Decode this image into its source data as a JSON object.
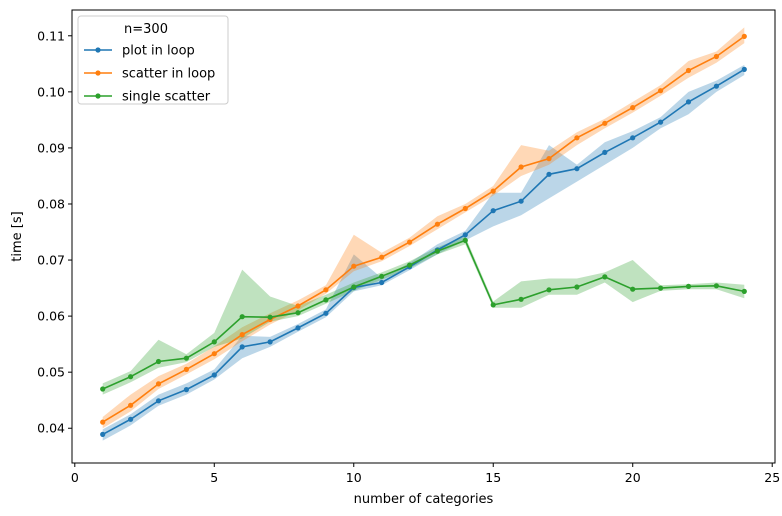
{
  "chart_data": {
    "type": "line",
    "xlabel": "number of categories",
    "ylabel": "time [s]",
    "xlim": [
      -0.1,
      25.1
    ],
    "ylim": [
      0.0338,
      0.1146
    ],
    "xticks": [
      0,
      5,
      10,
      15,
      20,
      25
    ],
    "yticks": [
      0.04,
      0.05,
      0.06,
      0.07,
      0.08,
      0.09,
      0.1,
      0.11
    ],
    "grid": false,
    "legend": {
      "title": "n=300",
      "placement": "top-left"
    },
    "x": [
      1,
      2,
      3,
      4,
      5,
      6,
      7,
      8,
      9,
      10,
      11,
      12,
      13,
      14,
      15,
      16,
      17,
      18,
      19,
      20,
      21,
      22,
      23,
      24
    ],
    "series": [
      {
        "name": "plot in loop",
        "color": "#1f77b4",
        "values": [
          0.0389,
          0.0416,
          0.0449,
          0.0469,
          0.0495,
          0.0545,
          0.0554,
          0.0579,
          0.0605,
          0.0651,
          0.066,
          0.0688,
          0.0718,
          0.0745,
          0.0788,
          0.0805,
          0.0853,
          0.0863,
          0.0892,
          0.0918,
          0.0946,
          0.0982,
          0.101,
          0.104
        ],
        "lower": [
          0.0378,
          0.0405,
          0.044,
          0.046,
          0.0487,
          0.0525,
          0.0545,
          0.0572,
          0.0598,
          0.0644,
          0.0655,
          0.0682,
          0.071,
          0.0735,
          0.076,
          0.078,
          0.081,
          0.084,
          0.087,
          0.09,
          0.0935,
          0.096,
          0.1,
          0.103
        ],
        "upper": [
          0.0398,
          0.0425,
          0.046,
          0.048,
          0.0505,
          0.0565,
          0.0563,
          0.0586,
          0.0612,
          0.071,
          0.0668,
          0.0695,
          0.0728,
          0.0752,
          0.082,
          0.082,
          0.0905,
          0.087,
          0.091,
          0.093,
          0.0955,
          0.1,
          0.102,
          0.1048
        ]
      },
      {
        "name": "scatter in loop",
        "color": "#ff7f0e",
        "values": [
          0.0411,
          0.0441,
          0.0479,
          0.0505,
          0.0533,
          0.0567,
          0.0594,
          0.0618,
          0.0647,
          0.0689,
          0.0705,
          0.0732,
          0.0764,
          0.0792,
          0.0823,
          0.0866,
          0.0881,
          0.0918,
          0.0944,
          0.0972,
          0.1002,
          0.1038,
          0.1063,
          0.1099
        ],
        "lower": [
          0.04,
          0.043,
          0.047,
          0.0496,
          0.0523,
          0.0555,
          0.0585,
          0.061,
          0.064,
          0.068,
          0.0698,
          0.0725,
          0.0755,
          0.0785,
          0.0815,
          0.085,
          0.087,
          0.0905,
          0.0935,
          0.0963,
          0.0993,
          0.1025,
          0.1052,
          0.1087
        ],
        "upper": [
          0.042,
          0.046,
          0.0493,
          0.0515,
          0.0546,
          0.058,
          0.0605,
          0.0628,
          0.0655,
          0.0745,
          0.0713,
          0.074,
          0.0778,
          0.08,
          0.0832,
          0.0905,
          0.0895,
          0.0928,
          0.0952,
          0.0982,
          0.1012,
          0.1055,
          0.1072,
          0.1115
        ]
      },
      {
        "name": "single scatter",
        "color": "#2ca02c",
        "values": [
          0.047,
          0.0492,
          0.0519,
          0.0525,
          0.0554,
          0.0599,
          0.0598,
          0.0606,
          0.0629,
          0.0652,
          0.0671,
          0.0691,
          0.0716,
          0.0735,
          0.062,
          0.063,
          0.0647,
          0.0652,
          0.067,
          0.0648,
          0.065,
          0.0653,
          0.0654,
          0.0644
        ],
        "lower": [
          0.046,
          0.0482,
          0.0508,
          0.0518,
          0.0545,
          0.056,
          0.059,
          0.06,
          0.0622,
          0.0645,
          0.0665,
          0.0685,
          0.071,
          0.0728,
          0.0615,
          0.0615,
          0.0638,
          0.0638,
          0.066,
          0.0625,
          0.0645,
          0.0648,
          0.0648,
          0.0632
        ],
        "upper": [
          0.048,
          0.0502,
          0.0558,
          0.0532,
          0.057,
          0.0683,
          0.0635,
          0.0618,
          0.0638,
          0.066,
          0.0678,
          0.0698,
          0.0723,
          0.0742,
          0.0626,
          0.0662,
          0.0667,
          0.0667,
          0.0678,
          0.07,
          0.0655,
          0.0657,
          0.066,
          0.0656
        ]
      }
    ]
  }
}
